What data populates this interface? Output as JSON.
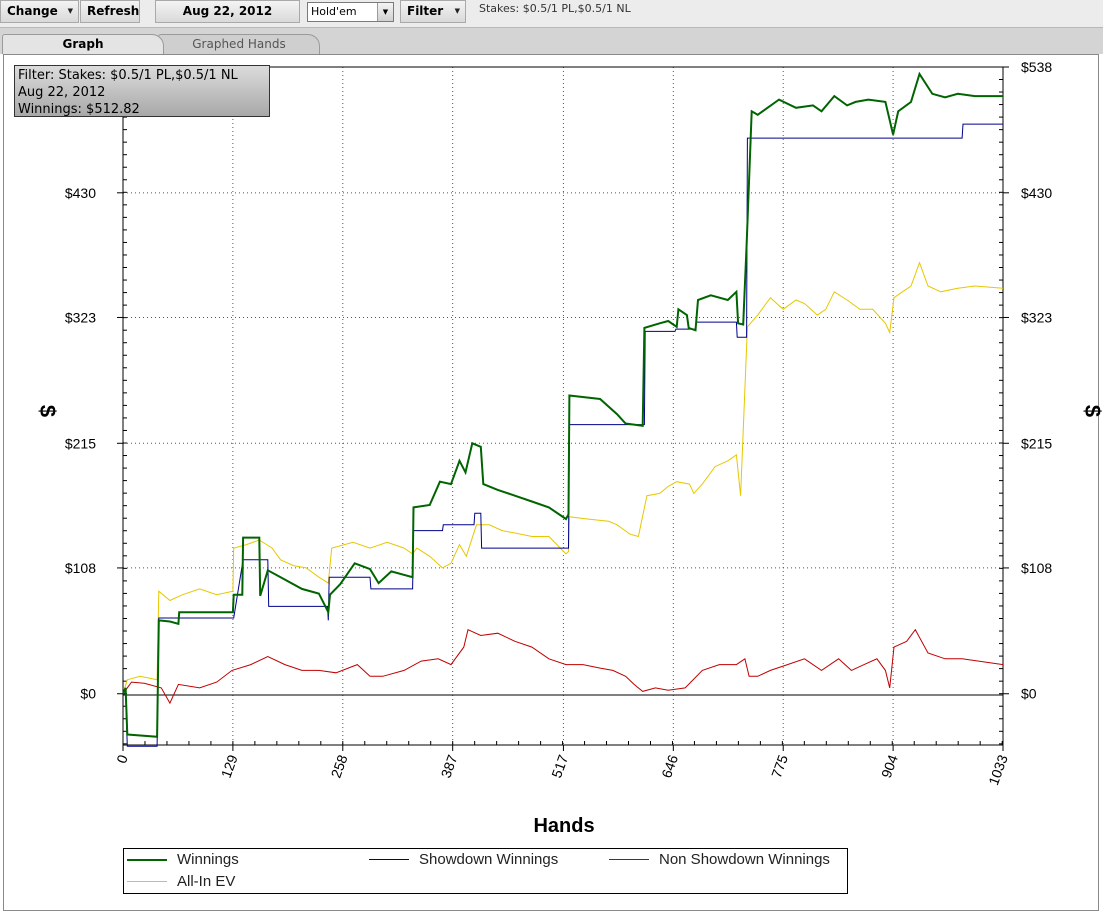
{
  "toolbar": {
    "change_label": "Change",
    "refresh_label": "Refresh",
    "date_label": "Aug 22, 2012",
    "game_select_value": "Hold'em",
    "filter_label": "Filter",
    "stakes_text": "Stakes: $0.5/1 PL,$0.5/1 NL"
  },
  "tabs": [
    {
      "label": "Graph",
      "active": true
    },
    {
      "label": "Graphed Hands",
      "active": false
    }
  ],
  "infobox": {
    "line1": "Filter: Stakes: $0.5/1 PL,$0.5/1 NL",
    "line2": "Aug 22, 2012",
    "line3": "Winnings: $512.82"
  },
  "chart_data": {
    "type": "line",
    "xlabel": "Hands",
    "ylabel": "$",
    "xlim": [
      0,
      1033
    ],
    "ylim": [
      -44,
      538
    ],
    "x_ticks": [
      "0",
      "129",
      "258",
      "387",
      "517",
      "646",
      "775",
      "904",
      "1033"
    ],
    "y_ticks_left": [
      "$0",
      "$108",
      "$215",
      "$323",
      "$430"
    ],
    "y_ticks_right": [
      "$0",
      "$108",
      "$215",
      "$323",
      "$430",
      "$538"
    ],
    "grid": true,
    "legend_position": "bottom",
    "series": [
      {
        "name": "Winnings",
        "color": "#006400",
        "points": [
          [
            0,
            0
          ],
          [
            3,
            5
          ],
          [
            5,
            -35
          ],
          [
            40,
            -37
          ],
          [
            42,
            63
          ],
          [
            55,
            62
          ],
          [
            65,
            60
          ],
          [
            66,
            70
          ],
          [
            129,
            70
          ],
          [
            130,
            85
          ],
          [
            140,
            85
          ],
          [
            141,
            134
          ],
          [
            160,
            134
          ],
          [
            161,
            84
          ],
          [
            170,
            106
          ],
          [
            185,
            100
          ],
          [
            210,
            90
          ],
          [
            230,
            86
          ],
          [
            241,
            70
          ],
          [
            243,
            85
          ],
          [
            255,
            94
          ],
          [
            272,
            112
          ],
          [
            290,
            107
          ],
          [
            300,
            95
          ],
          [
            315,
            105
          ],
          [
            340,
            100
          ],
          [
            341,
            160
          ],
          [
            360,
            162
          ],
          [
            372,
            182
          ],
          [
            385,
            180
          ],
          [
            395,
            200
          ],
          [
            402,
            190
          ],
          [
            410,
            215
          ],
          [
            420,
            212
          ],
          [
            423,
            180
          ],
          [
            440,
            175
          ],
          [
            460,
            170
          ],
          [
            480,
            165
          ],
          [
            500,
            160
          ],
          [
            520,
            150
          ],
          [
            523,
            154
          ],
          [
            524,
            256
          ],
          [
            560,
            253
          ],
          [
            580,
            240
          ],
          [
            590,
            232
          ],
          [
            610,
            230
          ],
          [
            612,
            314
          ],
          [
            630,
            318
          ],
          [
            640,
            320
          ],
          [
            650,
            315
          ],
          [
            652,
            330
          ],
          [
            662,
            325
          ],
          [
            664,
            314
          ],
          [
            672,
            312
          ],
          [
            675,
            338
          ],
          [
            690,
            342
          ],
          [
            710,
            338
          ],
          [
            720,
            345
          ],
          [
            722,
            318
          ],
          [
            728,
            317
          ],
          [
            732,
            385
          ],
          [
            738,
            500
          ],
          [
            745,
            497
          ],
          [
            770,
            510
          ],
          [
            790,
            503
          ],
          [
            810,
            505
          ],
          [
            820,
            500
          ],
          [
            835,
            513
          ],
          [
            850,
            505
          ],
          [
            860,
            508
          ],
          [
            875,
            510
          ],
          [
            895,
            508
          ],
          [
            904,
            480
          ],
          [
            910,
            500
          ],
          [
            925,
            508
          ],
          [
            935,
            532
          ],
          [
            950,
            515
          ],
          [
            965,
            512
          ],
          [
            980,
            515
          ],
          [
            1000,
            513
          ],
          [
            1033,
            513
          ]
        ]
      },
      {
        "name": "Showdown Winnings",
        "color": "#00008b",
        "points": [
          [
            0,
            0
          ],
          [
            3,
            0
          ],
          [
            5,
            -45
          ],
          [
            40,
            -45
          ],
          [
            42,
            65
          ],
          [
            129,
            65
          ],
          [
            130,
            65
          ],
          [
            141,
            115
          ],
          [
            170,
            115
          ],
          [
            171,
            75
          ],
          [
            240,
            75
          ],
          [
            241,
            63
          ],
          [
            242,
            100
          ],
          [
            290,
            100
          ],
          [
            291,
            90
          ],
          [
            340,
            90
          ],
          [
            341,
            140
          ],
          [
            375,
            140
          ],
          [
            376,
            145
          ],
          [
            412,
            145
          ],
          [
            413,
            155
          ],
          [
            420,
            155
          ],
          [
            421,
            125
          ],
          [
            523,
            125
          ],
          [
            524,
            231
          ],
          [
            612,
            231
          ],
          [
            613,
            311
          ],
          [
            648,
            311
          ],
          [
            649,
            313
          ],
          [
            672,
            313
          ],
          [
            673,
            319
          ],
          [
            720,
            319
          ],
          [
            721,
            306
          ],
          [
            732,
            306
          ],
          [
            733,
            477
          ],
          [
            904,
            477
          ],
          [
            905,
            477
          ],
          [
            985,
            477
          ],
          [
            986,
            489
          ],
          [
            1033,
            489
          ]
        ]
      },
      {
        "name": "Non Showdown Winnings",
        "color": "#c00000",
        "points": [
          [
            0,
            0
          ],
          [
            10,
            10
          ],
          [
            25,
            9
          ],
          [
            45,
            5
          ],
          [
            55,
            -8
          ],
          [
            65,
            8
          ],
          [
            90,
            5
          ],
          [
            110,
            10
          ],
          [
            128,
            20
          ],
          [
            150,
            25
          ],
          [
            170,
            32
          ],
          [
            190,
            25
          ],
          [
            210,
            20
          ],
          [
            230,
            20
          ],
          [
            250,
            18
          ],
          [
            275,
            25
          ],
          [
            290,
            15
          ],
          [
            305,
            15
          ],
          [
            330,
            20
          ],
          [
            350,
            28
          ],
          [
            370,
            30
          ],
          [
            385,
            25
          ],
          [
            400,
            40
          ],
          [
            405,
            55
          ],
          [
            420,
            50
          ],
          [
            440,
            52
          ],
          [
            460,
            45
          ],
          [
            480,
            40
          ],
          [
            500,
            30
          ],
          [
            520,
            25
          ],
          [
            540,
            25
          ],
          [
            560,
            22
          ],
          [
            575,
            20
          ],
          [
            590,
            15
          ],
          [
            600,
            8
          ],
          [
            610,
            2
          ],
          [
            625,
            5
          ],
          [
            640,
            3
          ],
          [
            660,
            5
          ],
          [
            680,
            20
          ],
          [
            700,
            25
          ],
          [
            720,
            25
          ],
          [
            730,
            30
          ],
          [
            735,
            15
          ],
          [
            745,
            15
          ],
          [
            760,
            20
          ],
          [
            780,
            25
          ],
          [
            800,
            30
          ],
          [
            820,
            20
          ],
          [
            840,
            30
          ],
          [
            855,
            20
          ],
          [
            870,
            25
          ],
          [
            885,
            30
          ],
          [
            895,
            20
          ],
          [
            900,
            5
          ],
          [
            905,
            40
          ],
          [
            920,
            45
          ],
          [
            930,
            55
          ],
          [
            945,
            35
          ],
          [
            965,
            30
          ],
          [
            985,
            30
          ],
          [
            1033,
            25
          ]
        ]
      },
      {
        "name": "All-In EV",
        "color": "#e6c800",
        "points": [
          [
            0,
            0
          ],
          [
            5,
            12
          ],
          [
            20,
            15
          ],
          [
            40,
            12
          ],
          [
            42,
            88
          ],
          [
            55,
            80
          ],
          [
            70,
            85
          ],
          [
            90,
            90
          ],
          [
            110,
            85
          ],
          [
            129,
            88
          ],
          [
            130,
            125
          ],
          [
            145,
            128
          ],
          [
            160,
            132
          ],
          [
            175,
            125
          ],
          [
            185,
            115
          ],
          [
            200,
            110
          ],
          [
            215,
            108
          ],
          [
            230,
            100
          ],
          [
            241,
            95
          ],
          [
            245,
            125
          ],
          [
            270,
            130
          ],
          [
            290,
            125
          ],
          [
            310,
            130
          ],
          [
            330,
            125
          ],
          [
            340,
            120
          ],
          [
            345,
            125
          ],
          [
            360,
            118
          ],
          [
            375,
            108
          ],
          [
            385,
            112
          ],
          [
            395,
            128
          ],
          [
            403,
            118
          ],
          [
            415,
            145
          ],
          [
            430,
            145
          ],
          [
            445,
            140
          ],
          [
            460,
            138
          ],
          [
            480,
            135
          ],
          [
            500,
            135
          ],
          [
            520,
            120
          ],
          [
            523,
            122
          ],
          [
            524,
            152
          ],
          [
            545,
            150
          ],
          [
            570,
            148
          ],
          [
            580,
            145
          ],
          [
            595,
            137
          ],
          [
            605,
            135
          ],
          [
            615,
            170
          ],
          [
            630,
            172
          ],
          [
            640,
            178
          ],
          [
            650,
            182
          ],
          [
            665,
            180
          ],
          [
            670,
            172
          ],
          [
            680,
            180
          ],
          [
            695,
            195
          ],
          [
            710,
            200
          ],
          [
            720,
            205
          ],
          [
            725,
            170
          ],
          [
            733,
            315
          ],
          [
            745,
            325
          ],
          [
            760,
            340
          ],
          [
            775,
            330
          ],
          [
            790,
            338
          ],
          [
            800,
            335
          ],
          [
            815,
            325
          ],
          [
            825,
            330
          ],
          [
            835,
            345
          ],
          [
            850,
            338
          ],
          [
            865,
            330
          ],
          [
            880,
            330
          ],
          [
            895,
            318
          ],
          [
            900,
            310
          ],
          [
            905,
            340
          ],
          [
            915,
            345
          ],
          [
            925,
            350
          ],
          [
            935,
            370
          ],
          [
            945,
            350
          ],
          [
            960,
            345
          ],
          [
            980,
            348
          ],
          [
            1000,
            350
          ],
          [
            1033,
            348
          ]
        ]
      }
    ]
  }
}
